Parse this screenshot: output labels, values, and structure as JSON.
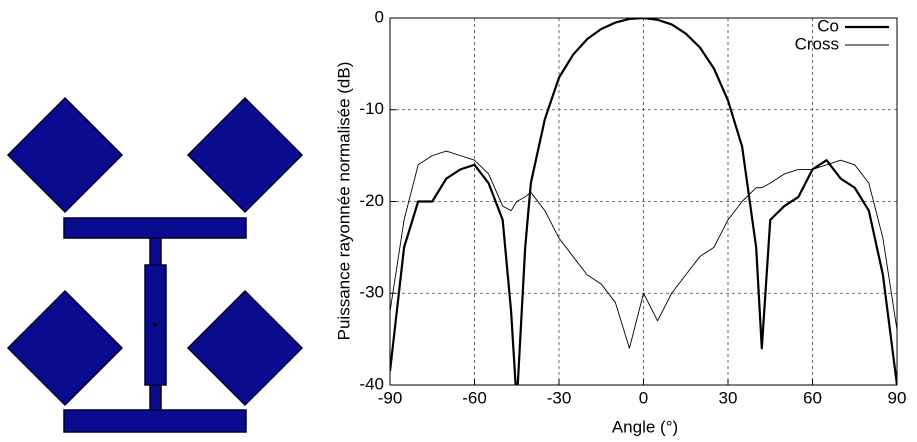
{
  "chart_data": {
    "type": "line",
    "x_label": "Angle (°)",
    "y_label": "Puissance rayonnée normalisée (dB)",
    "x": [
      -90,
      -85,
      -80,
      -75,
      -70,
      -65,
      -60,
      -55,
      -50,
      -47,
      -45,
      -42,
      -40,
      -35,
      -30,
      -25,
      -20,
      -15,
      -10,
      -5,
      0,
      5,
      10,
      15,
      20,
      25,
      30,
      35,
      40,
      42,
      45,
      50,
      55,
      60,
      65,
      70,
      75,
      80,
      85,
      90
    ],
    "series": [
      {
        "name": "Co",
        "color": "#000000",
        "line_width": 2.2,
        "values": [
          -38.5,
          -25,
          -20,
          -20,
          -17.5,
          -16.5,
          -16,
          -18,
          -22,
          -32,
          -42,
          -25,
          -18,
          -11,
          -6.5,
          -4,
          -2.3,
          -1.2,
          -0.5,
          -0.1,
          0,
          -0.2,
          -0.7,
          -1.7,
          -3.2,
          -5.5,
          -9,
          -14,
          -25,
          -36,
          -22,
          -20.5,
          -19.5,
          -16.5,
          -15.5,
          -17.5,
          -18.5,
          -21,
          -28,
          -40
        ]
      },
      {
        "name": "Cross",
        "color": "#000000",
        "line_width": 0.9,
        "values": [
          -32,
          -22,
          -16,
          -15,
          -14.5,
          -15,
          -15.5,
          -17,
          -20.5,
          -21,
          -20,
          -19.5,
          -19,
          -21,
          -24,
          -26,
          -28,
          -29,
          -31,
          -36,
          -30,
          -33,
          -30,
          -28,
          -26,
          -25,
          -22,
          -20,
          -18.5,
          -18.5,
          -18,
          -17,
          -16.5,
          -16.5,
          -16,
          -15.5,
          -16,
          -18,
          -24,
          -34
        ]
      }
    ],
    "xlim": [
      -90,
      90
    ],
    "xticks": [
      -90,
      -60,
      -30,
      0,
      30,
      60,
      90
    ],
    "ylim": [
      -40,
      0
    ],
    "yticks": [
      -40,
      -30,
      -20,
      -10,
      0
    ],
    "grid": true,
    "legend": "upper right"
  }
}
